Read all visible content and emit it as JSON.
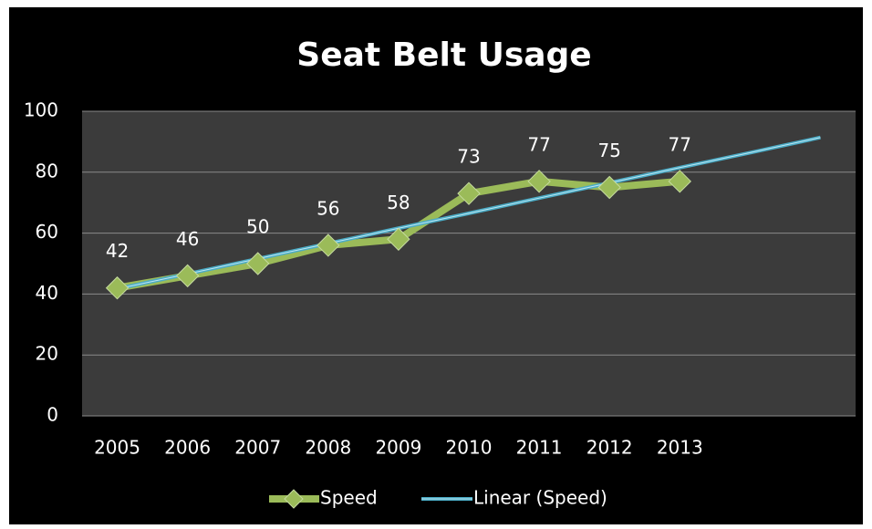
{
  "chart_data": {
    "type": "line",
    "title": "Seat Belt Usage",
    "categories": [
      "2005",
      "2006",
      "2007",
      "2008",
      "2009",
      "2010",
      "2011",
      "2012",
      "2013",
      null,
      null
    ],
    "series": [
      {
        "name": "Speed",
        "color": "#9bbb59",
        "values": [
          42,
          46,
          50,
          56,
          58,
          73,
          77,
          75,
          77,
          null,
          null
        ]
      },
      {
        "name": "Linear (Speed)",
        "color": "#4bacc6",
        "values": [
          41.7,
          46.6,
          51.6,
          56.6,
          61.6,
          66.5,
          71.5,
          76.5,
          81.5,
          86.4,
          91.4
        ]
      }
    ],
    "ylim": [
      0,
      100
    ],
    "yticks": [
      0,
      20,
      40,
      60,
      80,
      100
    ],
    "grid": true,
    "legend": "bottom"
  }
}
